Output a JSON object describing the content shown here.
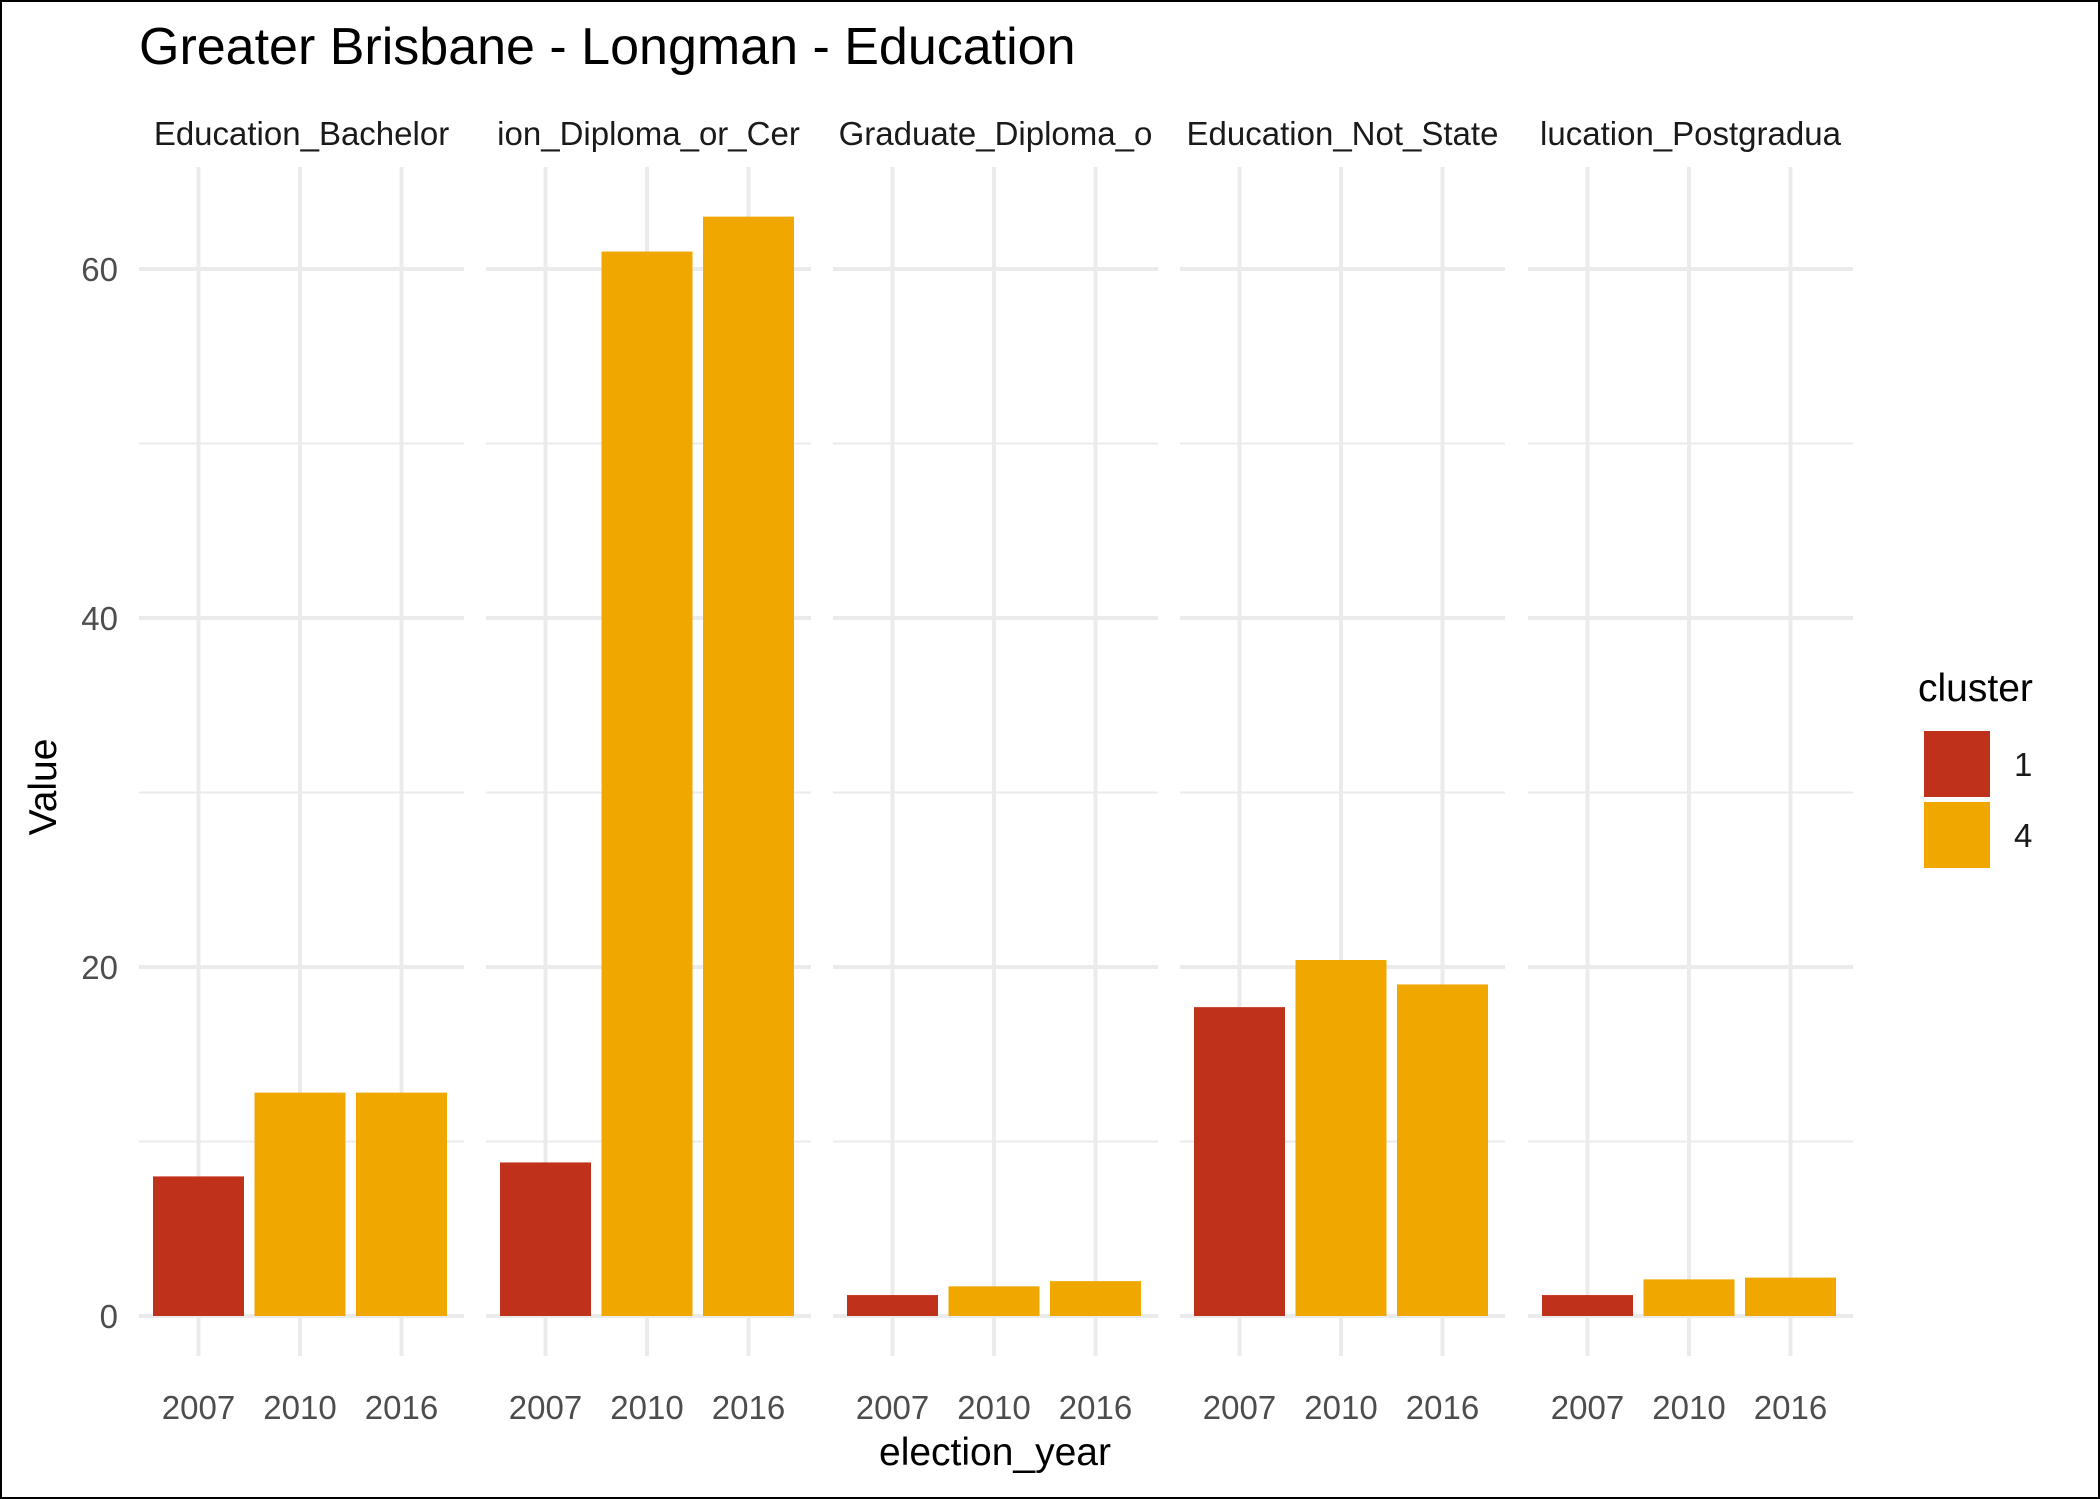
{
  "chart_data": {
    "type": "bar",
    "title": "Greater Brisbane - Longman - Education",
    "xlabel": "election_year",
    "ylabel": "Value",
    "ylim": [
      0,
      65
    ],
    "y_ticks": [
      "0",
      "20",
      "40",
      "60"
    ],
    "x_categories": [
      "2007",
      "2010",
      "2016"
    ],
    "grid": true,
    "facets": [
      {
        "strip_label": "Education_Bachelor",
        "bars": [
          {
            "x": "2007",
            "value": 8.0,
            "cluster": "1"
          },
          {
            "x": "2010",
            "value": 12.8,
            "cluster": "4"
          },
          {
            "x": "2016",
            "value": 12.8,
            "cluster": "4"
          }
        ]
      },
      {
        "strip_label": "ion_Diploma_or_Cer",
        "bars": [
          {
            "x": "2007",
            "value": 8.8,
            "cluster": "1"
          },
          {
            "x": "2010",
            "value": 61.0,
            "cluster": "4"
          },
          {
            "x": "2016",
            "value": 63.0,
            "cluster": "4"
          }
        ]
      },
      {
        "strip_label": "Graduate_Diploma_o",
        "bars": [
          {
            "x": "2007",
            "value": 1.2,
            "cluster": "1"
          },
          {
            "x": "2010",
            "value": 1.7,
            "cluster": "4"
          },
          {
            "x": "2016",
            "value": 2.0,
            "cluster": "4"
          }
        ]
      },
      {
        "strip_label": "Education_Not_State",
        "bars": [
          {
            "x": "2007",
            "value": 17.7,
            "cluster": "1"
          },
          {
            "x": "2010",
            "value": 20.4,
            "cluster": "4"
          },
          {
            "x": "2016",
            "value": 19.0,
            "cluster": "4"
          }
        ]
      },
      {
        "strip_label": "lucation_Postgradua",
        "bars": [
          {
            "x": "2007",
            "value": 1.2,
            "cluster": "1"
          },
          {
            "x": "2010",
            "value": 2.1,
            "cluster": "4"
          },
          {
            "x": "2016",
            "value": 2.2,
            "cluster": "4"
          }
        ]
      }
    ],
    "legend": {
      "title": "cluster",
      "placement": "right",
      "entries": [
        {
          "label": "1",
          "color": "#C0311B"
        },
        {
          "label": "4",
          "color": "#F0A800"
        }
      ]
    },
    "colors": {
      "cluster_1": "#C0311B",
      "cluster_4": "#F0A800",
      "grid": "#EBEBEB"
    }
  }
}
